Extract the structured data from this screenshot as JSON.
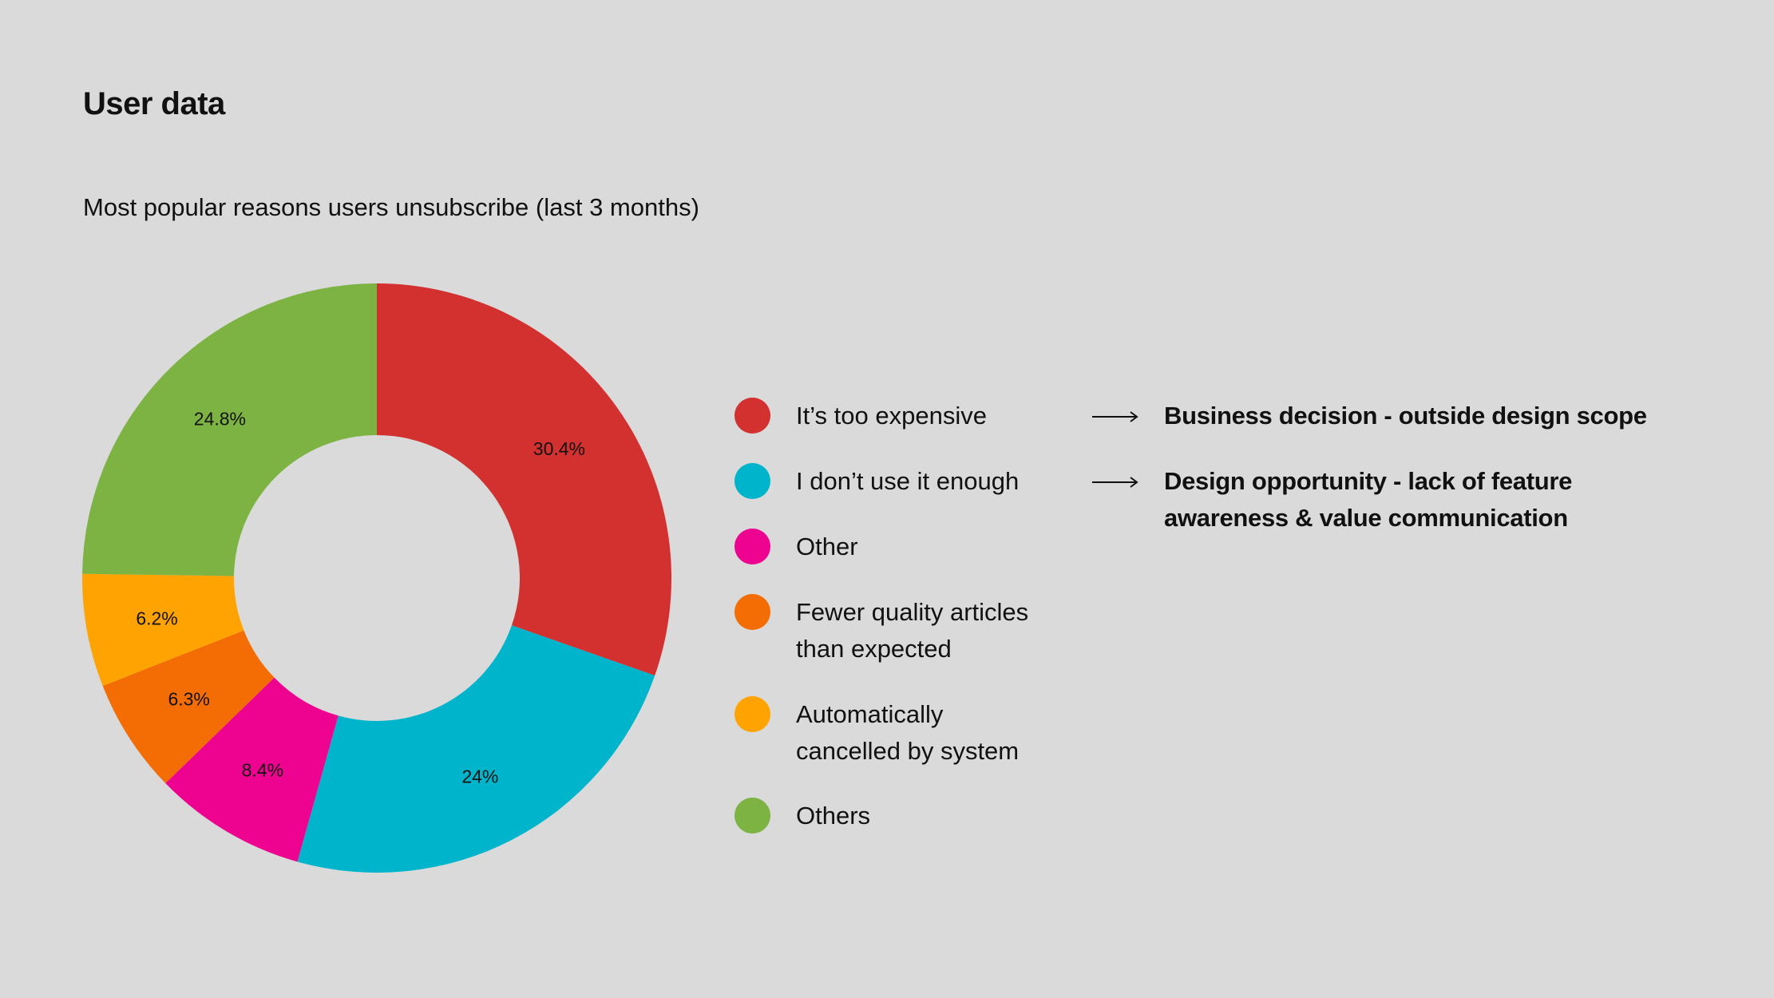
{
  "header": {
    "title": "User data"
  },
  "chart_data": {
    "type": "pie",
    "title": "Most popular reasons users unsubscribe (last 3 months)",
    "categories": [
      "It’s too expensive",
      "I don’t use it enough",
      "Other",
      "Fewer quality articles than expected",
      "Automatically cancelled by system",
      "Others"
    ],
    "values": [
      30.4,
      24,
      8.4,
      6.3,
      6.2,
      24.8
    ],
    "data_labels": [
      "30.4%",
      "24%",
      "8.4%",
      "6.3%",
      "6.2%",
      "24.8%"
    ],
    "colors": [
      "#d33030",
      "#00b5cb",
      "#ee0390",
      "#f46d04",
      "#ffa302",
      "#7db343"
    ],
    "legend_placement": "right"
  },
  "callouts": [
    {
      "text": "Business decision - outside design scope"
    },
    {
      "text": "Design opportunity - lack of feature awareness & value communication"
    }
  ]
}
